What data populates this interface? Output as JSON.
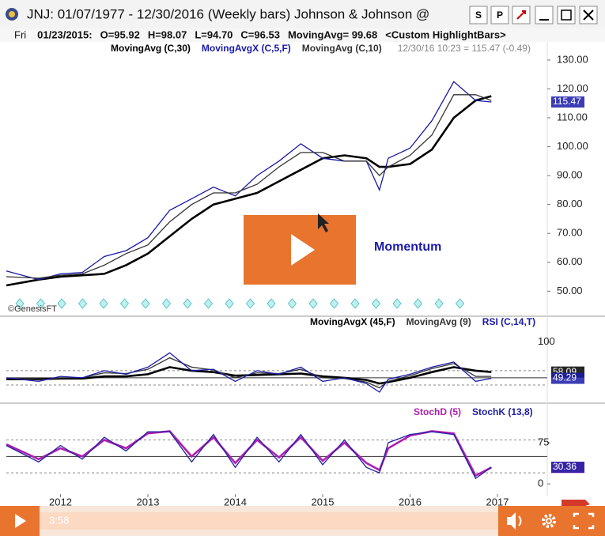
{
  "window": {
    "title": "JNJ:  01/07/1977 - 12/30/2016  (Weekly bars)   Johnson & Johnson @",
    "buttons": [
      "S",
      "P"
    ]
  },
  "info_bar": [
    "Fri",
    "01/23/2015:",
    "O=95.92",
    "H=98.07",
    "L=94.70",
    "C=96.53",
    "MovingAvg= 99.68",
    "<Custom HighlightBars>"
  ],
  "chart_data": [
    {
      "type": "line",
      "annotation": "12/30/16 10:23 = 115.47 (-0.49)",
      "watermark": "©GenesisFT",
      "overlay_text": "Momentum",
      "x": [
        2011.38,
        2011.75,
        2012,
        2012.25,
        2012.5,
        2012.75,
        2013,
        2013.25,
        2013.5,
        2013.75,
        2014,
        2014.25,
        2014.5,
        2014.75,
        2015,
        2015.25,
        2015.5,
        2015.65,
        2015.75,
        2016,
        2016.25,
        2016.5,
        2016.75,
        2016.93
      ],
      "xlim": [
        2011.38,
        2017.57
      ],
      "ylim": [
        42.7,
        134.9
      ],
      "yticks": [
        {
          "value": 50,
          "label": "50.00"
        },
        {
          "value": 60,
          "label": "60.00"
        },
        {
          "value": 70,
          "label": "70.00"
        },
        {
          "value": 80,
          "label": "80.00"
        },
        {
          "value": 90,
          "label": "90.00"
        },
        {
          "value": 100,
          "label": "100.00"
        },
        {
          "value": 110,
          "label": "110.00"
        },
        {
          "value": 120,
          "label": "120.00"
        },
        {
          "value": 130,
          "label": "130.00"
        }
      ],
      "series": [
        {
          "name": "MovingAvg (C,30)",
          "color": "#000000",
          "values": [
            52,
            54,
            55,
            55.5,
            56,
            59,
            63,
            69,
            75,
            80,
            82,
            84,
            88,
            92,
            96,
            97,
            96,
            93,
            93,
            94,
            99,
            110,
            116,
            117.5
          ]
        },
        {
          "name": "MovingAvgX (C,5,F)",
          "color": "#1a1aa8",
          "end_label": true,
          "values": [
            57,
            54,
            56,
            56.5,
            62,
            64,
            68.5,
            78,
            82,
            86,
            83,
            90,
            95,
            101,
            96,
            95,
            95,
            85,
            96,
            99.5,
            109,
            122.5,
            116,
            115.47
          ]
        },
        {
          "name": "MovingAvg (C,10)",
          "color": "#333333",
          "values": [
            55,
            54.5,
            55.5,
            56,
            59,
            63,
            66,
            74,
            80,
            84,
            84,
            87,
            93,
            98,
            98,
            95,
            95,
            90,
            93,
            97,
            104,
            118,
            118,
            116
          ]
        }
      ]
    },
    {
      "type": "line",
      "x": [
        2011.38,
        2011.75,
        2012,
        2012.25,
        2012.5,
        2012.75,
        2013,
        2013.25,
        2013.5,
        2013.75,
        2014,
        2014.25,
        2014.5,
        2014.75,
        2015,
        2015.25,
        2015.5,
        2015.65,
        2015.75,
        2016,
        2016.25,
        2016.5,
        2016.75,
        2016.93
      ],
      "xlim": [
        2011.38,
        2017.57
      ],
      "ylim": [
        20,
        123
      ],
      "yticks": [
        100
      ],
      "ref_lines": [
        60,
        50,
        40
      ],
      "series": [
        {
          "name": "MovingAvgX (45,F)",
          "color": "#000000",
          "end_label": true,
          "values": [
            48,
            48,
            49,
            49,
            52,
            52,
            55,
            65,
            60,
            58,
            53,
            54,
            55,
            56,
            52,
            50,
            47,
            42,
            44,
            50,
            58,
            65,
            60,
            58.09
          ]
        },
        {
          "name": "MovingAvg (9)",
          "color": "#333333",
          "values": [
            49,
            47,
            50,
            50,
            57,
            56,
            62,
            78,
            65,
            61,
            50,
            57,
            56,
            62,
            50,
            49,
            44,
            36,
            45,
            53,
            63,
            70,
            52,
            52
          ]
        },
        {
          "name": "RSI (C,14,T)",
          "color": "#1a1aa8",
          "end_label": true,
          "values": [
            50,
            45,
            52,
            50,
            60,
            55,
            65,
            85,
            60,
            62,
            45,
            60,
            55,
            65,
            45,
            50,
            42,
            30,
            48,
            55,
            65,
            72,
            45,
            49.29
          ]
        }
      ]
    },
    {
      "type": "line",
      "x": [
        2011.38,
        2011.75,
        2012,
        2012.25,
        2012.5,
        2012.75,
        2013,
        2013.25,
        2013.5,
        2013.75,
        2014,
        2014.25,
        2014.5,
        2014.75,
        2015,
        2015.25,
        2015.5,
        2015.65,
        2015.75,
        2016,
        2016.25,
        2016.5,
        2016.75,
        2016.93
      ],
      "xlim": [
        2011.38,
        2017.57
      ],
      "ylim": [
        -18.7,
        132.7
      ],
      "yticks": [
        0,
        75
      ],
      "ref_lines": [
        80,
        50,
        20
      ],
      "xticks": [
        2012,
        2013,
        2014,
        2015,
        2016,
        2017
      ],
      "series": [
        {
          "name": "StochD (5)",
          "color": "#b020b0",
          "end_label": true,
          "values": [
            72,
            45,
            65,
            50,
            80,
            65,
            92,
            96,
            50,
            85,
            38,
            80,
            48,
            85,
            42,
            75,
            38,
            25,
            65,
            88,
            96,
            92,
            15,
            29.84
          ]
        },
        {
          "name": "StochK (13,8)",
          "color": "#2020a0",
          "end_label": true,
          "values": [
            70,
            40,
            70,
            45,
            85,
            60,
            95,
            95,
            40,
            90,
            30,
            85,
            40,
            90,
            35,
            80,
            30,
            20,
            75,
            90,
            95,
            90,
            10,
            30.36
          ]
        }
      ]
    }
  ],
  "video": {
    "time": "3:58"
  }
}
